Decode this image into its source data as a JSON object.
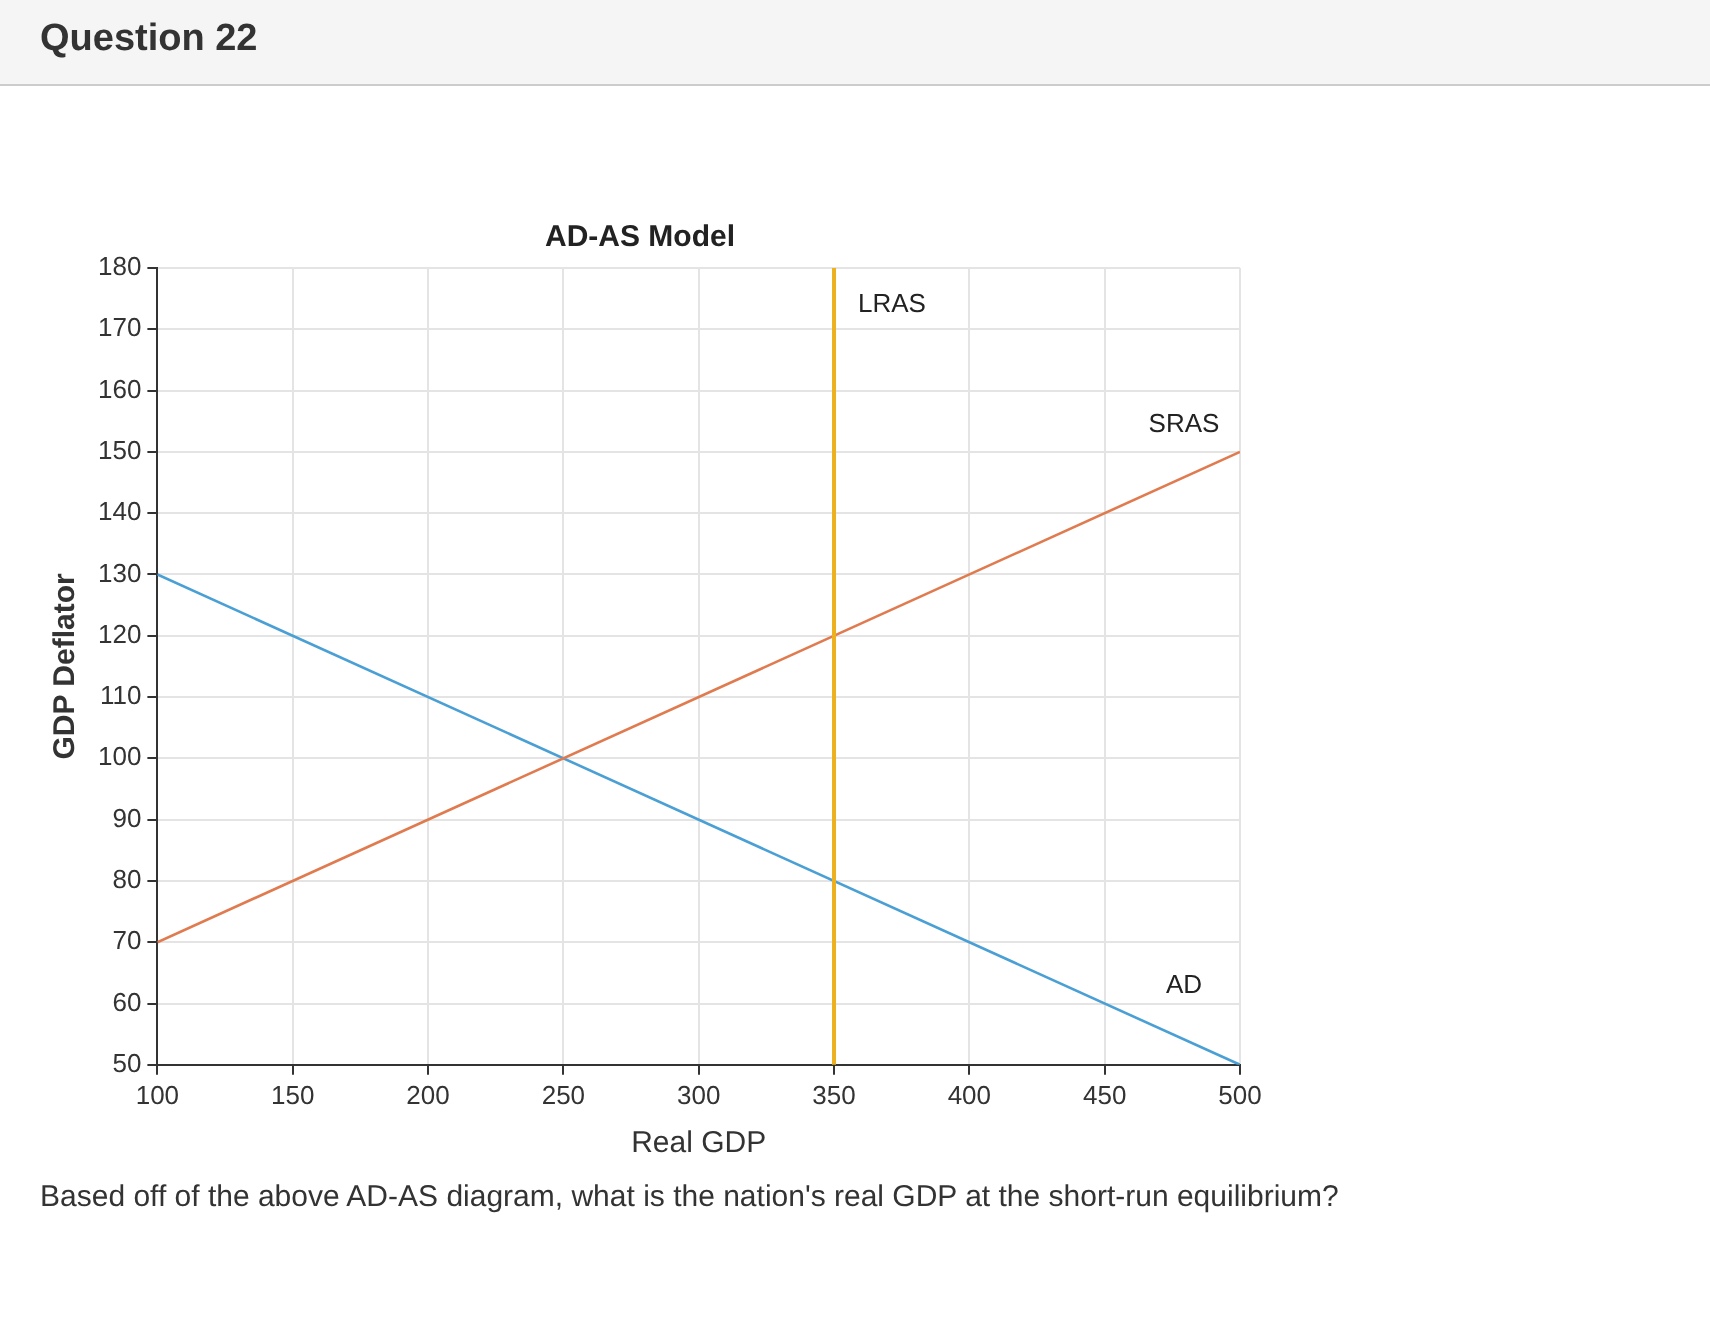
{
  "chart_data": {
    "type": "line",
    "title": "AD-AS Model",
    "xlabel": "Real GDP",
    "ylabel": "GDP Deflator",
    "annotations": [
      "Question 22",
      "Based off of the above AD-AS diagram, what is the nation's real GDP at the short-run equilibrium?"
    ],
    "x": [
      100,
      500
    ],
    "series": [
      {
        "name": "SRAS",
        "color": "#e07b50",
        "values": [
          70,
          150
        ]
      },
      {
        "name": "AD",
        "color": "#4a9fd4",
        "values": [
          130,
          50
        ]
      }
    ],
    "ref_lines": [
      {
        "axis": "x",
        "value": 350,
        "label": "LRAS",
        "color": "#edb120"
      }
    ],
    "xlim": [
      100,
      500
    ],
    "xticks": [
      100,
      150,
      200,
      250,
      300,
      350,
      400,
      450,
      500
    ],
    "ylim": [
      50,
      180
    ],
    "yticks": [
      50,
      60,
      70,
      80,
      90,
      100,
      110,
      120,
      130,
      140,
      150,
      160,
      170,
      180
    ],
    "grid": true,
    "legend": false,
    "marker": "none",
    "line_style": "solid"
  }
}
